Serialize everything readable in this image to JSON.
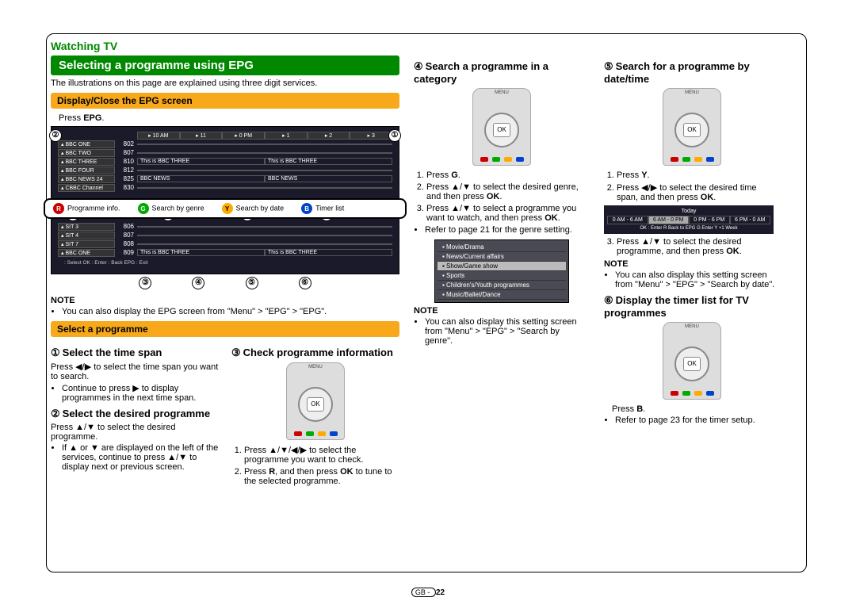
{
  "header": {
    "section": "Watching TV",
    "title": "Selecting a programme using EPG",
    "intro": "The illustrations on this page are explained using three digit services."
  },
  "subhead1": "Display/Close the EPG screen",
  "subhead2": "Select a programme",
  "press_epg": "Press ",
  "press_epg_b": "EPG",
  "press_epg_end": ".",
  "epg": {
    "timeslots": [
      "10 AM",
      "11",
      "0 PM",
      "1",
      "2",
      "3"
    ],
    "rows": [
      {
        "ch": "BBC ONE",
        "num": "802",
        "cell": ""
      },
      {
        "ch": "BBC TWO",
        "num": "807",
        "cell": ""
      },
      {
        "ch": "BBC THREE",
        "num": "810",
        "cell": "This is BBC THREE"
      },
      {
        "ch": "BBC FOUR",
        "num": "812",
        "cell": ""
      },
      {
        "ch": "BBC NEWS 24",
        "num": "825",
        "cell": "BBC NEWS"
      },
      {
        "ch": "CBBC Channel",
        "num": "830",
        "cell": ""
      }
    ],
    "band": [
      {
        "pill": "r",
        "label": "Programme info."
      },
      {
        "pill": "g",
        "label": "Search by genre"
      },
      {
        "pill": "y",
        "label": "Search by date"
      },
      {
        "pill": "b",
        "label": "Timer list"
      }
    ],
    "rows2": [
      {
        "ch": "SIT 3",
        "num": "806",
        "cell": ""
      },
      {
        "ch": "SIT 4",
        "num": "807",
        "cell": ""
      },
      {
        "ch": "SIT 7",
        "num": "808",
        "cell": ""
      },
      {
        "ch": "BBC ONE",
        "num": "809",
        "cell": "This is BBC THREE"
      }
    ],
    "footer_hint": " : Select   OK : Enter     : Back   EPG : Exit"
  },
  "note_epg": "You can also display the EPG screen from \"Menu\" > \"EPG\" > \"EPG\".",
  "step1": {
    "num": "①",
    "title": "Select the time span",
    "body": "Press ◀/▶ to select the time span you want to search.",
    "bullet": "Continue to press ▶ to display programmes in the next time span."
  },
  "step2": {
    "num": "②",
    "title": "Select the desired programme",
    "body": "Press ▲/▼ to select the desired programme.",
    "bullet": "If ▲ or ▼ are displayed on the left of the services, continue to press ▲/▼ to display next or previous screen."
  },
  "step3": {
    "num": "③",
    "title": "Check programme information",
    "li1": "Press ▲/▼/◀/▶ to select the programme you want to check.",
    "li2": "Press R, and then press OK to tune to the selected programme."
  },
  "step4": {
    "num": "④",
    "title": "Search a programme in a category",
    "li1": "Press G.",
    "li2": "Press ▲/▼ to select the desired genre, and then press OK.",
    "li3": "Press ▲/▼ to select a programme you want to watch, and then press OK.",
    "bullet": "Refer to page 21 for the genre setting.",
    "note": "You can also display this setting screen from \"Menu\" > \"EPG\" > \"Search by genre\".",
    "genres": [
      "Movie/Drama",
      "News/Current affairs",
      "Show/Game show",
      "Sports",
      "Children's/Youth programmes",
      "Music/Ballet/Dance"
    ]
  },
  "step5": {
    "num": "⑤",
    "title": "Search for a programme by date/time",
    "li1": "Press Y.",
    "li2": "Press ◀/▶ to select the desired time span, and then press OK.",
    "li3": "Press ▲/▼ to select the desired programme, and then press OK.",
    "note": "You can also display this setting screen from \"Menu\" > \"EPG\" > \"Search by date\".",
    "strip": {
      "label": "Today",
      "cells": [
        "0 AM - 6 AM",
        "6 AM - 0 PM",
        "0 PM - 6 PM",
        "6 PM - 0 AM"
      ],
      "sel": 1,
      "bot": "OK : Enter   R Back to EPG   G Enter   Y +1 Week"
    }
  },
  "step6": {
    "num": "⑥",
    "title": "Display the timer list for TV programmes",
    "body": "Press B.",
    "bullet": "Refer to page 23 for the timer setup."
  },
  "note_label": "NOTE",
  "page_num": "22",
  "page_prefix": "GB - "
}
